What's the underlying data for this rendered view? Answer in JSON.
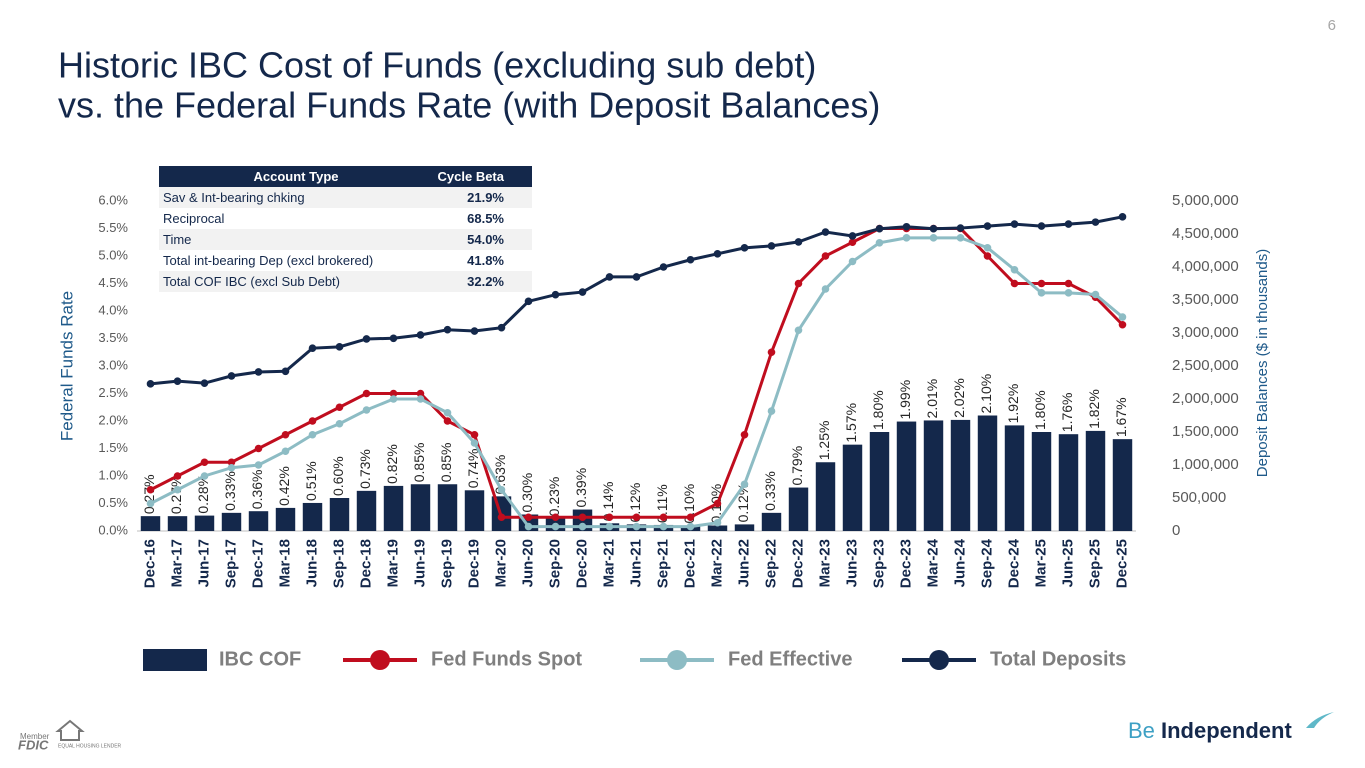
{
  "page_number": "6",
  "footer": {
    "brand_a": "Be",
    "brand_b": "Independent",
    "member": "Member",
    "fdic": "FDIC",
    "lender": "EQUAL HOUSING LENDER"
  },
  "table": {
    "header": [
      "Account Type",
      "Cycle Beta"
    ],
    "rows": [
      [
        "Sav & Int-bearing chking",
        "21.9%"
      ],
      [
        "Reciprocal",
        "68.5%"
      ],
      [
        "Time",
        "54.0%"
      ],
      [
        "Total int-bearing Dep  (excl brokered)",
        "41.8%"
      ],
      [
        "Total COF IBC (excl Sub Debt)",
        "32.2%"
      ]
    ]
  },
  "chart_data": {
    "type": "combo",
    "title": "Historic IBC Cost of Funds (excluding sub debt)",
    "subtitle": "vs. the Federal Funds Rate (with Deposit Balances)",
    "y_label": "Federal Funds Rate",
    "y2_label": "Deposit Balances ($ in thousands)",
    "categories": [
      "Dec-16",
      "Mar-17",
      "Jun-17",
      "Sep-17",
      "Dec-17",
      "Mar-18",
      "Jun-18",
      "Sep-18",
      "Dec-18",
      "Mar-19",
      "Jun-19",
      "Sep-19",
      "Dec-19",
      "Mar-20",
      "Jun-20",
      "Sep-20",
      "Dec-20",
      "Mar-21",
      "Jun-21",
      "Sep-21",
      "Dec-21",
      "Mar-22",
      "Jun-22",
      "Sep-22",
      "Dec-22",
      "Mar-23",
      "Jun-23",
      "Sep-23",
      "Dec-23",
      "Mar-24",
      "Jun-24",
      "Sep-24",
      "Dec-24",
      "Mar-25",
      "Jun-25",
      "Sep-25",
      "Dec-25"
    ],
    "ylim": [
      0,
      6
    ],
    "yticks": [
      {
        "value": 0,
        "label": "0.0%"
      },
      {
        "value": 0.5,
        "label": "0.5%"
      },
      {
        "value": 1,
        "label": "1.0%"
      },
      {
        "value": 1.5,
        "label": "1.5%"
      },
      {
        "value": 2,
        "label": "2.0%"
      },
      {
        "value": 2.5,
        "label": "2.5%"
      },
      {
        "value": 3,
        "label": "3.0%"
      },
      {
        "value": 3.5,
        "label": "3.5%"
      },
      {
        "value": 4,
        "label": "4.0%"
      },
      {
        "value": 4.5,
        "label": "4.5%"
      },
      {
        "value": 5,
        "label": "5.0%"
      },
      {
        "value": 5.5,
        "label": "5.5%"
      },
      {
        "value": 6,
        "label": "6.0%"
      }
    ],
    "y2lim": [
      0,
      5000000
    ],
    "y2ticks": [
      0,
      {
        "value": 500000,
        "label": "500,000"
      },
      {
        "value": 1000000,
        "label": "1,000,000"
      },
      {
        "value": 1500000,
        "label": "1,500,000"
      },
      {
        "value": 2000000,
        "label": "2,000,000"
      },
      {
        "value": 2500000,
        "label": "2,500,000"
      },
      {
        "value": 3000000,
        "label": "3,000,000"
      },
      {
        "value": 3500000,
        "label": "3,500,000"
      },
      {
        "value": 4000000,
        "label": "4,000,000"
      },
      {
        "value": 4500000,
        "label": "4,500,000"
      },
      {
        "value": 5000000,
        "label": "5,000,000"
      }
    ],
    "series": [
      {
        "name": "IBC COF",
        "type": "bar",
        "color": "#14284b",
        "values": [
          0.27,
          0.27,
          0.28,
          0.33,
          0.36,
          0.42,
          0.51,
          0.6,
          0.73,
          0.82,
          0.85,
          0.85,
          0.74,
          0.63,
          0.3,
          0.23,
          0.39,
          0.14,
          0.12,
          0.11,
          0.1,
          0.1,
          0.12,
          0.33,
          0.79,
          1.25,
          1.57,
          1.8,
          1.99,
          2.01,
          2.02,
          2.1,
          1.92,
          1.8,
          1.76,
          1.82,
          1.67
        ],
        "value_labels": [
          "0.27%",
          "0.27%",
          "0.28%",
          "0.33%",
          "0.36%",
          "0.42%",
          "0.51%",
          "0.60%",
          "0.73%",
          "0.82%",
          "0.85%",
          "0.85%",
          "0.74%",
          "0.63%",
          "0.30%",
          "0.23%",
          "0.39%",
          "0.14%",
          "0.12%",
          "0.11%",
          "0.10%",
          "0.10%",
          "0.12%",
          "0.33%",
          "0.79%",
          "1.25%",
          "1.57%",
          "1.80%",
          "1.99%",
          "2.01%",
          "2.02%",
          "2.10%",
          "1.92%",
          "1.80%",
          "1.76%",
          "1.82%",
          "1.67%"
        ]
      },
      {
        "name": "Fed Funds Spot",
        "type": "line",
        "color": "#c00d1e",
        "values": [
          0.75,
          1.0,
          1.25,
          1.25,
          1.5,
          1.75,
          2.0,
          2.25,
          2.5,
          2.5,
          2.5,
          2.0,
          1.75,
          0.25,
          0.25,
          0.25,
          0.25,
          0.25,
          0.25,
          0.25,
          0.25,
          0.5,
          1.75,
          3.25,
          4.5,
          5.0,
          5.25,
          5.5,
          5.5,
          5.5,
          5.5,
          5.0,
          4.5,
          4.5,
          4.5,
          4.25,
          3.75
        ]
      },
      {
        "name": "Fed Effective",
        "type": "line",
        "color": "#8dbcc4",
        "values": [
          0.5,
          0.75,
          1.0,
          1.15,
          1.2,
          1.45,
          1.75,
          1.95,
          2.2,
          2.4,
          2.4,
          2.15,
          1.6,
          0.75,
          0.08,
          0.08,
          0.08,
          0.08,
          0.08,
          0.08,
          0.08,
          0.15,
          0.85,
          2.18,
          3.65,
          4.4,
          4.9,
          5.24,
          5.33,
          5.33,
          5.33,
          5.15,
          4.75,
          4.33,
          4.33,
          4.3,
          3.89
        ]
      },
      {
        "name": "Total Deposits",
        "type": "line",
        "color": "#14284b",
        "axis": "y2",
        "values": [
          2230000,
          2270000,
          2240000,
          2350000,
          2410000,
          2420000,
          2770000,
          2790000,
          2910000,
          2920000,
          2970000,
          3050000,
          3030000,
          3080000,
          3480000,
          3580000,
          3620000,
          3850000,
          3850000,
          4000000,
          4110000,
          4200000,
          4290000,
          4320000,
          4380000,
          4530000,
          4470000,
          4580000,
          4610000,
          4580000,
          4590000,
          4620000,
          4650000,
          4620000,
          4650000,
          4680000,
          4760000
        ]
      }
    ]
  }
}
